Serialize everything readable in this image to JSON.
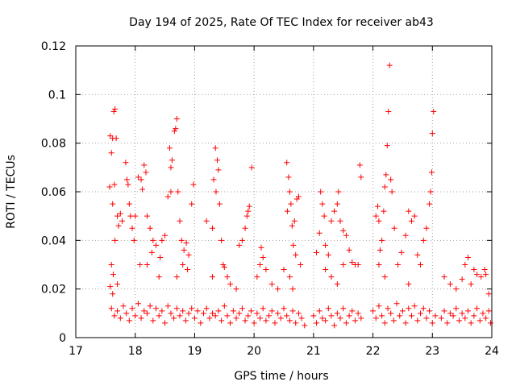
{
  "chart_data": {
    "type": "scatter",
    "title": "Day 194 of 2025, Rate Of TEC Index for receiver ab43",
    "xlabel": "GPS time / hours",
    "ylabel": "ROTI / TECUs",
    "xlim": [
      17,
      24
    ],
    "ylim": [
      0,
      0.12
    ],
    "x_ticks": [
      17,
      18,
      19,
      20,
      21,
      22,
      23,
      24
    ],
    "x_tick_labels": [
      "17",
      "18",
      "19",
      "20",
      "21",
      "22",
      "23",
      "24"
    ],
    "y_ticks": [
      0,
      0.02,
      0.04,
      0.06,
      0.08,
      0.1,
      0.12
    ],
    "y_tick_labels": [
      "0",
      "0.02",
      "0.04",
      "0.06",
      "0.08",
      "0.1",
      "0.12"
    ],
    "grid": true,
    "marker": "+",
    "marker_color": "#ff0000",
    "series": [
      {
        "name": "ROTI",
        "points": [
          [
            17.58,
            0.083
          ],
          [
            17.6,
            0.076
          ],
          [
            17.62,
            0.082
          ],
          [
            17.64,
            0.093
          ],
          [
            17.66,
            0.094
          ],
          [
            17.68,
            0.082
          ],
          [
            17.57,
            0.062
          ],
          [
            17.62,
            0.055
          ],
          [
            17.65,
            0.063
          ],
          [
            17.7,
            0.05
          ],
          [
            17.72,
            0.046
          ],
          [
            17.75,
            0.051
          ],
          [
            17.78,
            0.048
          ],
          [
            17.6,
            0.03
          ],
          [
            17.63,
            0.026
          ],
          [
            17.58,
            0.021
          ],
          [
            17.66,
            0.04
          ],
          [
            17.62,
            0.018
          ],
          [
            17.7,
            0.022
          ],
          [
            17.84,
            0.072
          ],
          [
            17.86,
            0.065
          ],
          [
            17.88,
            0.063
          ],
          [
            17.9,
            0.055
          ],
          [
            17.92,
            0.05
          ],
          [
            17.95,
            0.045
          ],
          [
            17.98,
            0.04
          ],
          [
            18.0,
            0.05
          ],
          [
            18.05,
            0.066
          ],
          [
            18.1,
            0.065
          ],
          [
            18.15,
            0.071
          ],
          [
            18.18,
            0.068
          ],
          [
            18.12,
            0.061
          ],
          [
            18.2,
            0.05
          ],
          [
            18.25,
            0.045
          ],
          [
            18.3,
            0.04
          ],
          [
            18.35,
            0.038
          ],
          [
            18.42,
            0.033
          ],
          [
            18.45,
            0.04
          ],
          [
            18.5,
            0.042
          ],
          [
            18.2,
            0.03
          ],
          [
            18.28,
            0.035
          ],
          [
            18.08,
            0.03
          ],
          [
            18.4,
            0.025
          ],
          [
            18.58,
            0.078
          ],
          [
            18.6,
            0.07
          ],
          [
            18.62,
            0.073
          ],
          [
            18.55,
            0.058
          ],
          [
            18.6,
            0.06
          ],
          [
            18.68,
            0.086
          ],
          [
            18.7,
            0.09
          ],
          [
            18.66,
            0.085
          ],
          [
            18.72,
            0.06
          ],
          [
            18.75,
            0.048
          ],
          [
            18.78,
            0.04
          ],
          [
            18.82,
            0.036
          ],
          [
            18.86,
            0.039
          ],
          [
            18.9,
            0.034
          ],
          [
            18.95,
            0.055
          ],
          [
            18.98,
            0.063
          ],
          [
            18.8,
            0.03
          ],
          [
            18.7,
            0.025
          ],
          [
            18.88,
            0.028
          ],
          [
            19.2,
            0.048
          ],
          [
            19.3,
            0.045
          ],
          [
            19.35,
            0.078
          ],
          [
            19.38,
            0.073
          ],
          [
            19.4,
            0.069
          ],
          [
            19.32,
            0.065
          ],
          [
            19.36,
            0.06
          ],
          [
            19.42,
            0.055
          ],
          [
            19.45,
            0.04
          ],
          [
            19.5,
            0.029
          ],
          [
            19.55,
            0.025
          ],
          [
            19.48,
            0.03
          ],
          [
            19.6,
            0.022
          ],
          [
            19.7,
            0.02
          ],
          [
            19.75,
            0.038
          ],
          [
            19.8,
            0.04
          ],
          [
            19.85,
            0.045
          ],
          [
            19.88,
            0.05
          ],
          [
            19.9,
            0.052
          ],
          [
            19.92,
            0.054
          ],
          [
            19.96,
            0.07
          ],
          [
            19.3,
            0.025
          ],
          [
            20.05,
            0.025
          ],
          [
            20.1,
            0.03
          ],
          [
            20.15,
            0.033
          ],
          [
            20.12,
            0.037
          ],
          [
            20.2,
            0.028
          ],
          [
            20.3,
            0.022
          ],
          [
            20.4,
            0.02
          ],
          [
            20.5,
            0.028
          ],
          [
            20.55,
            0.072
          ],
          [
            20.58,
            0.066
          ],
          [
            20.6,
            0.06
          ],
          [
            20.62,
            0.055
          ],
          [
            20.64,
            0.046
          ],
          [
            20.66,
            0.038
          ],
          [
            20.7,
            0.034
          ],
          [
            20.72,
            0.057
          ],
          [
            20.75,
            0.058
          ],
          [
            20.56,
            0.052
          ],
          [
            20.68,
            0.048
          ],
          [
            20.6,
            0.025
          ],
          [
            20.65,
            0.02
          ],
          [
            20.78,
            0.03
          ],
          [
            21.05,
            0.035
          ],
          [
            21.1,
            0.043
          ],
          [
            21.12,
            0.06
          ],
          [
            21.15,
            0.055
          ],
          [
            21.18,
            0.05
          ],
          [
            21.2,
            0.038
          ],
          [
            21.25,
            0.034
          ],
          [
            21.3,
            0.048
          ],
          [
            21.35,
            0.052
          ],
          [
            21.4,
            0.055
          ],
          [
            21.42,
            0.06
          ],
          [
            21.45,
            0.048
          ],
          [
            21.5,
            0.044
          ],
          [
            21.55,
            0.042
          ],
          [
            21.6,
            0.036
          ],
          [
            21.65,
            0.031
          ],
          [
            21.7,
            0.03
          ],
          [
            21.75,
            0.03
          ],
          [
            21.78,
            0.071
          ],
          [
            21.8,
            0.066
          ],
          [
            21.2,
            0.028
          ],
          [
            21.3,
            0.025
          ],
          [
            21.5,
            0.03
          ],
          [
            21.4,
            0.022
          ],
          [
            22.05,
            0.05
          ],
          [
            22.08,
            0.054
          ],
          [
            22.1,
            0.048
          ],
          [
            22.12,
            0.036
          ],
          [
            22.15,
            0.04
          ],
          [
            22.18,
            0.052
          ],
          [
            22.2,
            0.062
          ],
          [
            22.22,
            0.067
          ],
          [
            22.24,
            0.079
          ],
          [
            22.26,
            0.093
          ],
          [
            22.28,
            0.112
          ],
          [
            22.3,
            0.065
          ],
          [
            22.32,
            0.06
          ],
          [
            22.36,
            0.045
          ],
          [
            22.42,
            0.03
          ],
          [
            22.48,
            0.035
          ],
          [
            22.55,
            0.042
          ],
          [
            22.6,
            0.052
          ],
          [
            22.65,
            0.048
          ],
          [
            22.7,
            0.05
          ],
          [
            22.75,
            0.034
          ],
          [
            22.8,
            0.03
          ],
          [
            22.85,
            0.04
          ],
          [
            22.9,
            0.045
          ],
          [
            22.95,
            0.055
          ],
          [
            22.97,
            0.06
          ],
          [
            22.99,
            0.068
          ],
          [
            23.0,
            0.084
          ],
          [
            23.02,
            0.093
          ],
          [
            22.1,
            0.03
          ],
          [
            22.2,
            0.025
          ],
          [
            22.6,
            0.022
          ],
          [
            23.2,
            0.025
          ],
          [
            23.3,
            0.022
          ],
          [
            23.4,
            0.02
          ],
          [
            23.5,
            0.024
          ],
          [
            23.6,
            0.033
          ],
          [
            23.7,
            0.028
          ],
          [
            23.75,
            0.026
          ],
          [
            23.82,
            0.025
          ],
          [
            23.88,
            0.028
          ],
          [
            23.9,
            0.026
          ],
          [
            23.95,
            0.018
          ],
          [
            23.55,
            0.03
          ],
          [
            23.65,
            0.022
          ],
          [
            17.6,
            0.012
          ],
          [
            17.65,
            0.009
          ],
          [
            17.7,
            0.011
          ],
          [
            17.75,
            0.008
          ],
          [
            17.8,
            0.013
          ],
          [
            17.85,
            0.01
          ],
          [
            17.9,
            0.007
          ],
          [
            17.95,
            0.012
          ],
          [
            18.0,
            0.009
          ],
          [
            18.05,
            0.014
          ],
          [
            18.1,
            0.008
          ],
          [
            18.15,
            0.011
          ],
          [
            18.2,
            0.01
          ],
          [
            18.25,
            0.013
          ],
          [
            18.3,
            0.007
          ],
          [
            18.35,
            0.012
          ],
          [
            18.4,
            0.009
          ],
          [
            18.45,
            0.011
          ],
          [
            18.5,
            0.006
          ],
          [
            18.55,
            0.013
          ],
          [
            18.6,
            0.01
          ],
          [
            18.65,
            0.008
          ],
          [
            18.7,
            0.012
          ],
          [
            18.75,
            0.009
          ],
          [
            18.8,
            0.011
          ],
          [
            18.85,
            0.007
          ],
          [
            18.9,
            0.01
          ],
          [
            18.95,
            0.012
          ],
          [
            19.0,
            0.008
          ],
          [
            19.05,
            0.011
          ],
          [
            19.1,
            0.006
          ],
          [
            19.15,
            0.01
          ],
          [
            19.2,
            0.012
          ],
          [
            19.25,
            0.008
          ],
          [
            19.3,
            0.01
          ],
          [
            19.35,
            0.009
          ],
          [
            19.4,
            0.011
          ],
          [
            19.45,
            0.007
          ],
          [
            19.5,
            0.013
          ],
          [
            19.55,
            0.009
          ],
          [
            19.6,
            0.006
          ],
          [
            19.65,
            0.011
          ],
          [
            19.7,
            0.008
          ],
          [
            19.75,
            0.01
          ],
          [
            19.8,
            0.012
          ],
          [
            19.85,
            0.007
          ],
          [
            19.9,
            0.009
          ],
          [
            19.95,
            0.011
          ],
          [
            20.0,
            0.006
          ],
          [
            20.05,
            0.01
          ],
          [
            20.1,
            0.008
          ],
          [
            20.15,
            0.012
          ],
          [
            20.2,
            0.007
          ],
          [
            20.25,
            0.009
          ],
          [
            20.3,
            0.011
          ],
          [
            20.35,
            0.006
          ],
          [
            20.4,
            0.01
          ],
          [
            20.45,
            0.008
          ],
          [
            20.5,
            0.012
          ],
          [
            20.55,
            0.009
          ],
          [
            20.6,
            0.007
          ],
          [
            20.65,
            0.011
          ],
          [
            20.7,
            0.006
          ],
          [
            20.75,
            0.01
          ],
          [
            20.8,
            0.008
          ],
          [
            20.85,
            0.005
          ],
          [
            21.0,
            0.009
          ],
          [
            21.05,
            0.006
          ],
          [
            21.1,
            0.011
          ],
          [
            21.15,
            0.008
          ],
          [
            21.2,
            0.007
          ],
          [
            21.25,
            0.012
          ],
          [
            21.3,
            0.009
          ],
          [
            21.35,
            0.005
          ],
          [
            21.4,
            0.01
          ],
          [
            21.45,
            0.008
          ],
          [
            21.5,
            0.012
          ],
          [
            21.55,
            0.006
          ],
          [
            21.6,
            0.009
          ],
          [
            21.65,
            0.011
          ],
          [
            21.7,
            0.007
          ],
          [
            21.75,
            0.01
          ],
          [
            21.8,
            0.008
          ],
          [
            22.0,
            0.011
          ],
          [
            22.05,
            0.008
          ],
          [
            22.1,
            0.013
          ],
          [
            22.15,
            0.009
          ],
          [
            22.2,
            0.006
          ],
          [
            22.25,
            0.012
          ],
          [
            22.3,
            0.01
          ],
          [
            22.35,
            0.007
          ],
          [
            22.4,
            0.014
          ],
          [
            22.45,
            0.009
          ],
          [
            22.5,
            0.011
          ],
          [
            22.55,
            0.006
          ],
          [
            22.6,
            0.012
          ],
          [
            22.65,
            0.009
          ],
          [
            22.7,
            0.013
          ],
          [
            22.75,
            0.007
          ],
          [
            22.8,
            0.01
          ],
          [
            22.85,
            0.012
          ],
          [
            22.9,
            0.008
          ],
          [
            22.95,
            0.011
          ],
          [
            23.0,
            0.006
          ],
          [
            23.05,
            0.009
          ],
          [
            23.15,
            0.008
          ],
          [
            23.2,
            0.011
          ],
          [
            23.25,
            0.006
          ],
          [
            23.3,
            0.01
          ],
          [
            23.35,
            0.009
          ],
          [
            23.4,
            0.012
          ],
          [
            23.45,
            0.007
          ],
          [
            23.5,
            0.01
          ],
          [
            23.55,
            0.008
          ],
          [
            23.6,
            0.011
          ],
          [
            23.65,
            0.006
          ],
          [
            23.7,
            0.009
          ],
          [
            23.75,
            0.012
          ],
          [
            23.8,
            0.007
          ],
          [
            23.85,
            0.01
          ],
          [
            23.9,
            0.008
          ],
          [
            23.95,
            0.011
          ],
          [
            23.98,
            0.006
          ]
        ]
      }
    ]
  }
}
